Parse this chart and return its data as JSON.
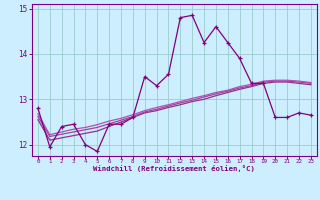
{
  "xlabel": "Windchill (Refroidissement éolien,°C)",
  "x": [
    0,
    1,
    2,
    3,
    4,
    5,
    6,
    7,
    8,
    9,
    10,
    11,
    12,
    13,
    14,
    15,
    16,
    17,
    18,
    19,
    20,
    21,
    22,
    23
  ],
  "line1_y": [
    12.8,
    11.95,
    12.4,
    12.45,
    12.0,
    11.85,
    12.45,
    12.45,
    12.6,
    13.5,
    13.3,
    13.55,
    14.8,
    14.85,
    14.25,
    14.6,
    14.25,
    13.9,
    13.35,
    13.35,
    12.6,
    12.6,
    12.7,
    12.65
  ],
  "smooth1_y": [
    12.55,
    12.1,
    12.15,
    12.2,
    12.25,
    12.3,
    12.4,
    12.5,
    12.6,
    12.7,
    12.75,
    12.82,
    12.88,
    12.95,
    13.0,
    13.08,
    13.15,
    13.22,
    13.28,
    13.35,
    13.38,
    13.38,
    13.35,
    13.32
  ],
  "smooth2_y": [
    12.62,
    12.18,
    12.23,
    12.28,
    12.33,
    12.38,
    12.46,
    12.54,
    12.62,
    12.72,
    12.78,
    12.85,
    12.92,
    12.98,
    13.05,
    13.12,
    13.18,
    13.25,
    13.3,
    13.38,
    13.4,
    13.4,
    13.38,
    13.35
  ],
  "smooth3_y": [
    12.68,
    12.22,
    12.28,
    12.34,
    12.38,
    12.44,
    12.52,
    12.58,
    12.66,
    12.75,
    12.82,
    12.88,
    12.95,
    13.02,
    13.08,
    13.15,
    13.2,
    13.28,
    13.33,
    13.4,
    13.42,
    13.42,
    13.4,
    13.37
  ],
  "color_line": "#800080",
  "color_s1": "#903090",
  "color_s2": "#a040a0",
  "color_s3": "#b050b0",
  "bg_color": "#cceeff",
  "grid_color": "#99cccc",
  "ylim": [
    11.75,
    15.1
  ],
  "xlim": [
    -0.5,
    23.5
  ],
  "yticks": [
    12,
    13,
    14,
    15
  ],
  "xticks": [
    0,
    1,
    2,
    3,
    4,
    5,
    6,
    7,
    8,
    9,
    10,
    11,
    12,
    13,
    14,
    15,
    16,
    17,
    18,
    19,
    20,
    21,
    22,
    23
  ]
}
